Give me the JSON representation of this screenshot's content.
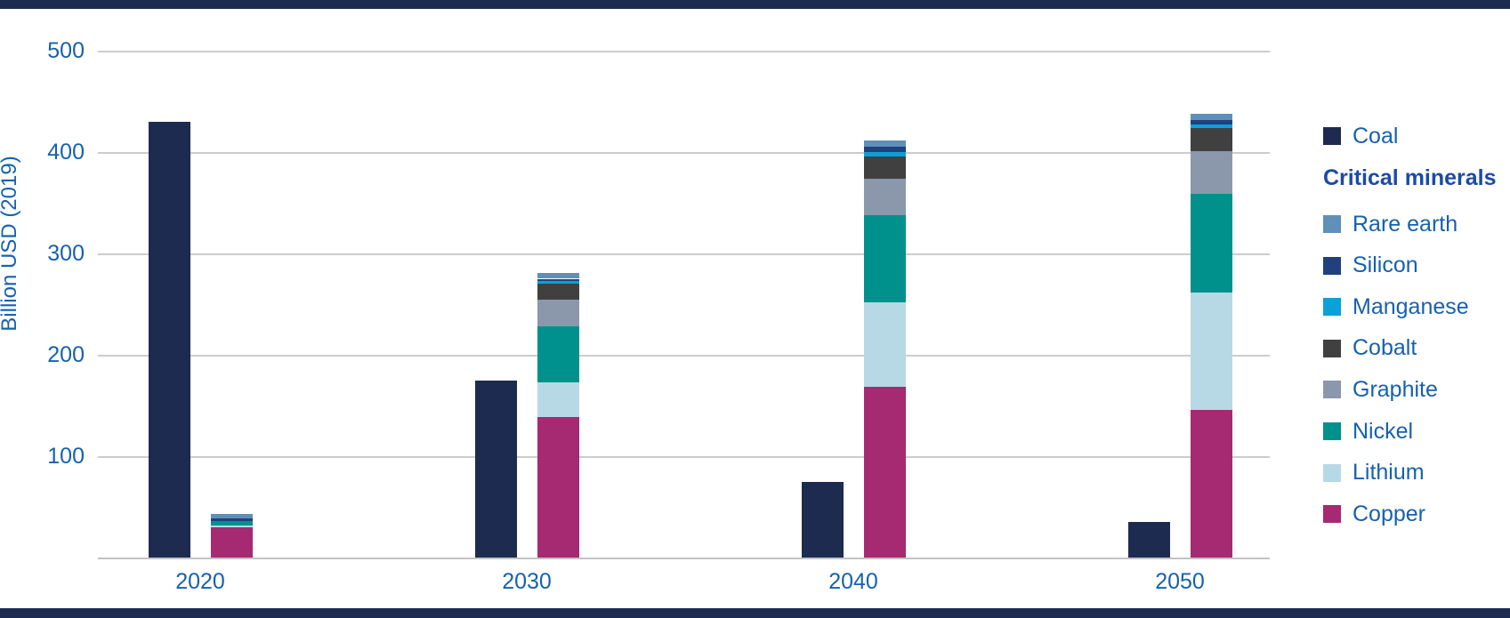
{
  "chart_data": {
    "type": "bar",
    "subtype": "grouped-with-stacked-column",
    "title": "",
    "xlabel": "",
    "ylabel": "Billion USD (2019)",
    "categories": [
      "2020",
      "2030",
      "2040",
      "2050"
    ],
    "yticks": [
      100,
      200,
      300,
      400,
      500
    ],
    "ylim": [
      0,
      500
    ],
    "grid": true,
    "legend_position": "right",
    "coal_series": {
      "name": "Coal",
      "color": "#1d2b50",
      "values": [
        430,
        175,
        75,
        35
      ]
    },
    "minerals_series_bottom_to_top": [
      {
        "name": "Copper",
        "color": "#a62a72",
        "values": [
          30,
          139,
          168,
          146
        ]
      },
      {
        "name": "Lithium",
        "color": "#b7d9e5",
        "values": [
          2,
          34,
          84,
          115
        ]
      },
      {
        "name": "Nickel",
        "color": "#00918d",
        "values": [
          4,
          55,
          86,
          98
        ]
      },
      {
        "name": "Graphite",
        "color": "#8b98ab",
        "values": [
          0,
          26,
          36,
          42
        ]
      },
      {
        "name": "Cobalt",
        "color": "#404041",
        "values": [
          0,
          16,
          22,
          23
        ]
      },
      {
        "name": "Manganese",
        "color": "#0ba0d8",
        "values": [
          0,
          3,
          4,
          3
        ]
      },
      {
        "name": "Silicon",
        "color": "#21417e",
        "values": [
          3,
          2,
          5,
          5
        ]
      },
      {
        "name": "Rare earth",
        "color": "#5e90ba",
        "values": [
          4,
          6,
          6,
          6
        ]
      }
    ],
    "minerals_totals": [
      43,
      281,
      411,
      438
    ],
    "legend": {
      "coal_label": "Coal",
      "group_header": "Critical minerals",
      "items_top_to_bottom": [
        "Rare earth",
        "Silicon",
        "Manganese",
        "Cobalt",
        "Graphite",
        "Nickel",
        "Lithium",
        "Copper"
      ]
    }
  },
  "colors": {
    "axis_text": "#1661ae",
    "legend_header_text": "#1a4ca6",
    "gridline": "#cccccc",
    "axis_line": "#c3c3c3",
    "border_bars": "#1d2b50",
    "background": "#ffffff"
  }
}
